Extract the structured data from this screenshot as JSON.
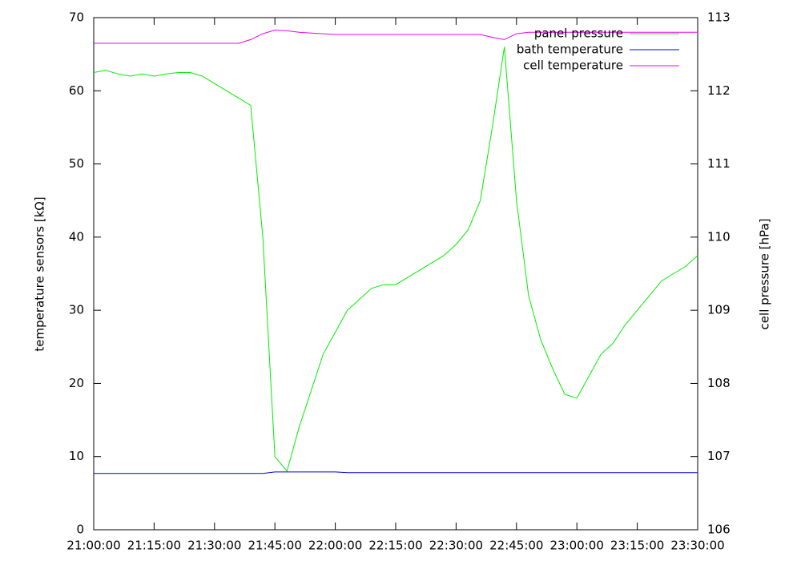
{
  "chart_data": {
    "type": "line",
    "ylabel": "temperature sensors [kΩ]",
    "y2label": "cell pressure [hPa]",
    "x": [
      "21:00:00",
      "21:03:00",
      "21:06:00",
      "21:09:00",
      "21:12:00",
      "21:15:00",
      "21:18:00",
      "21:21:00",
      "21:24:00",
      "21:27:00",
      "21:30:00",
      "21:33:00",
      "21:36:00",
      "21:39:00",
      "21:42:00",
      "21:45:00",
      "21:48:00",
      "21:51:00",
      "21:54:00",
      "21:57:00",
      "22:00:00",
      "22:03:00",
      "22:06:00",
      "22:09:00",
      "22:12:00",
      "22:15:00",
      "22:18:00",
      "22:21:00",
      "22:24:00",
      "22:27:00",
      "22:30:00",
      "22:33:00",
      "22:36:00",
      "22:39:00",
      "22:42:00",
      "22:45:00",
      "22:48:00",
      "22:51:00",
      "22:54:00",
      "22:57:00",
      "23:00:00",
      "23:03:00",
      "23:06:00",
      "23:09:00",
      "23:12:00",
      "23:15:00",
      "23:18:00",
      "23:21:00",
      "23:24:00",
      "23:27:00",
      "23:30:00"
    ],
    "series": [
      {
        "name": "panel pressure",
        "color": "#00ee00",
        "values": [
          62.5,
          62.8,
          62.3,
          62.0,
          62.3,
          62.0,
          62.3,
          62.5,
          62.5,
          62.0,
          61.0,
          60.0,
          59.0,
          58.0,
          40.0,
          10.0,
          8.0,
          14.0,
          19.0,
          24.0,
          27.0,
          30.0,
          31.5,
          33.0,
          33.5,
          33.5,
          34.5,
          35.5,
          36.5,
          37.5,
          39.0,
          41.0,
          45.0,
          55.0,
          66.0,
          45.0,
          32.0,
          26.0,
          22.0,
          18.5,
          18.0,
          21.0,
          24.0,
          25.5,
          28.0,
          30.0,
          32.0,
          34.0,
          35.0,
          36.0,
          37.5
        ]
      },
      {
        "name": "bath temperature",
        "color": "#0000dd",
        "values": [
          7.7,
          7.7,
          7.7,
          7.7,
          7.7,
          7.7,
          7.7,
          7.7,
          7.7,
          7.7,
          7.7,
          7.7,
          7.7,
          7.7,
          7.7,
          7.9,
          7.9,
          7.9,
          7.9,
          7.9,
          7.9,
          7.8,
          7.8,
          7.8,
          7.8,
          7.8,
          7.8,
          7.8,
          7.8,
          7.8,
          7.8,
          7.8,
          7.8,
          7.8,
          7.8,
          7.8,
          7.8,
          7.8,
          7.8,
          7.8,
          7.8,
          7.8,
          7.8,
          7.8,
          7.8,
          7.8,
          7.8,
          7.8,
          7.8,
          7.8,
          7.8
        ]
      },
      {
        "name": "cell temperature",
        "color": "#ee00ee",
        "values": [
          66.5,
          66.5,
          66.5,
          66.5,
          66.5,
          66.5,
          66.5,
          66.5,
          66.5,
          66.5,
          66.5,
          66.5,
          66.5,
          67.0,
          67.8,
          68.3,
          68.2,
          68.0,
          67.9,
          67.8,
          67.7,
          67.7,
          67.7,
          67.7,
          67.7,
          67.7,
          67.7,
          67.7,
          67.7,
          67.7,
          67.7,
          67.7,
          67.7,
          67.3,
          67.0,
          67.8,
          68.0,
          68.0,
          68.0,
          68.0,
          68.0,
          68.0,
          68.0,
          68.0,
          68.0,
          68.0,
          68.0,
          68.0,
          68.0,
          68.0,
          68.0
        ]
      }
    ],
    "xlim": [
      "21:00:00",
      "23:30:00"
    ],
    "xticks": [
      "21:00:00",
      "21:15:00",
      "21:30:00",
      "21:45:00",
      "22:00:00",
      "22:15:00",
      "22:30:00",
      "22:45:00",
      "23:00:00",
      "23:15:00",
      "23:30:00"
    ],
    "ylim": [
      0,
      70
    ],
    "yticks": [
      0,
      10,
      20,
      30,
      40,
      50,
      60,
      70
    ],
    "y2lim": [
      106,
      113
    ],
    "y2ticks": [
      106,
      107,
      108,
      109,
      110,
      111,
      112,
      113
    ],
    "grid": false,
    "legend": "top-right"
  }
}
